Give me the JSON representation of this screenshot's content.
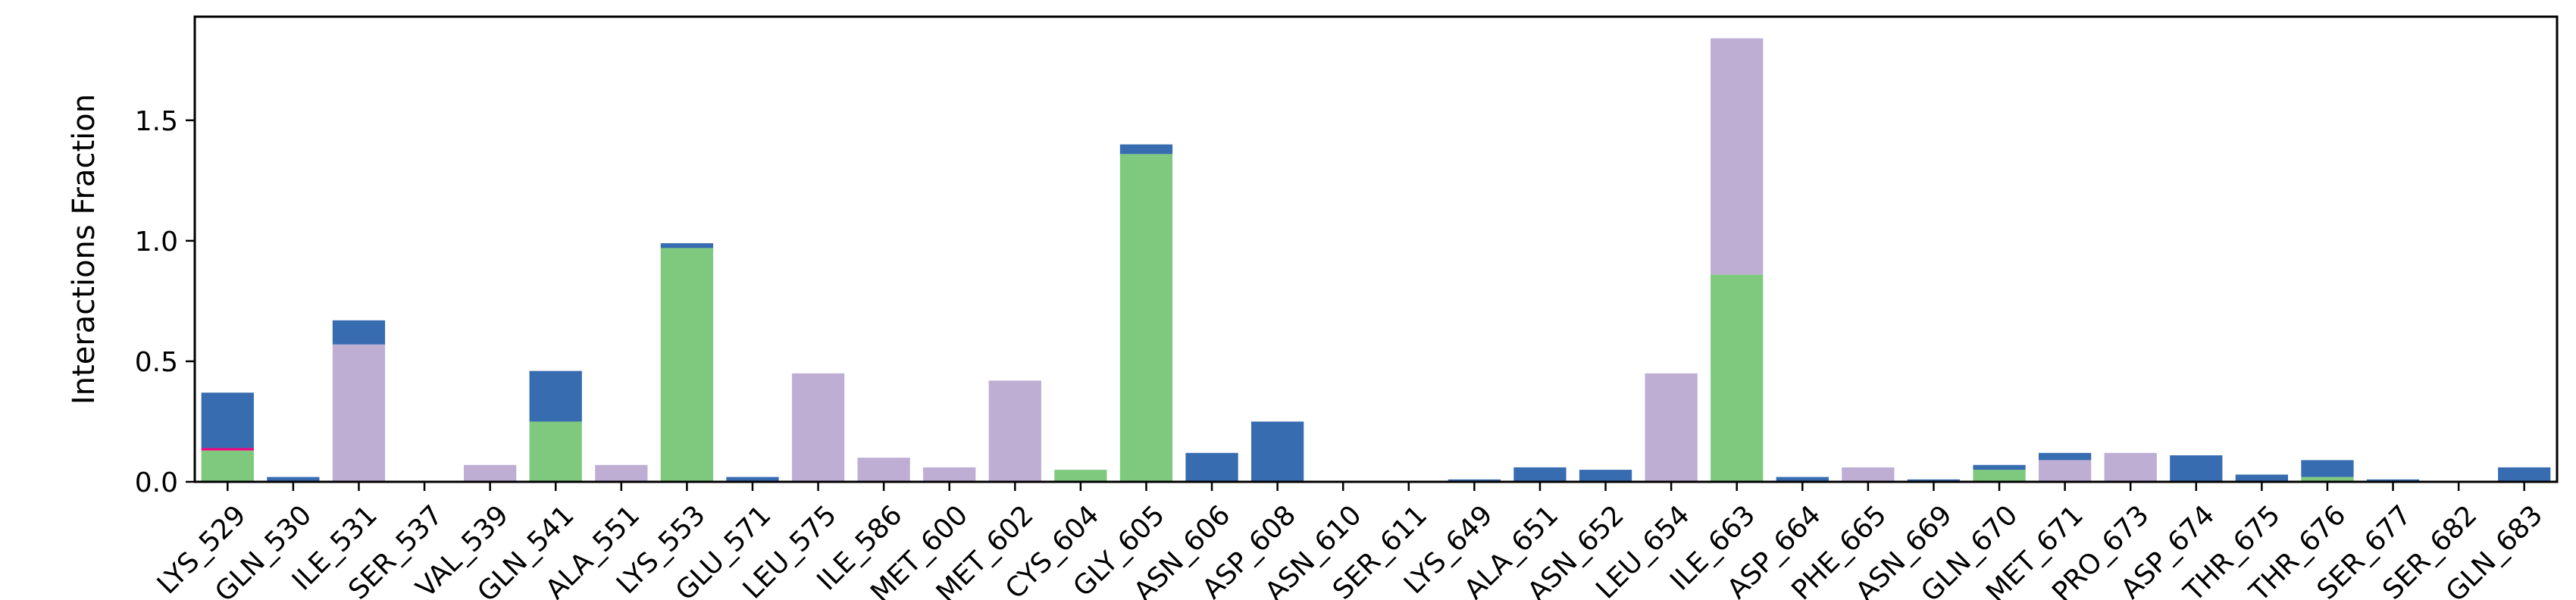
{
  "chart_data": {
    "type": "bar",
    "stacked": true,
    "title": "",
    "xlabel": "",
    "ylabel": "Interactions Fraction",
    "ylim": [
      0,
      1.93
    ],
    "yticks": [
      "0.0",
      "0.5",
      "1.0",
      "1.5"
    ],
    "ytick_values": [
      0,
      0.5,
      1.0,
      1.5
    ],
    "grid": false,
    "categories": [
      "LYS_529",
      "GLN_530",
      "ILE_531",
      "SER_537",
      "VAL_539",
      "GLN_541",
      "ALA_551",
      "LYS_553",
      "GLU_571",
      "LEU_575",
      "ILE_586",
      "MET_600",
      "MET_602",
      "CYS_604",
      "GLY_605",
      "ASN_606",
      "ASP_608",
      "ASN_610",
      "SER_611",
      "LYS_649",
      "ALA_651",
      "ASN_652",
      "LEU_654",
      "ILE_663",
      "ASP_664",
      "PHE_665",
      "ASN_669",
      "GLN_670",
      "MET_671",
      "PRO_673",
      "ASP_674",
      "THR_675",
      "THR_676",
      "SER_677",
      "SER_682",
      "GLN_683"
    ],
    "series": [
      {
        "color": "#7fc97f",
        "values": [
          0.13,
          0,
          0,
          0,
          0,
          0.25,
          0,
          0.97,
          0,
          0,
          0,
          0,
          0,
          0.05,
          1.36,
          0,
          0,
          0,
          0,
          0,
          0,
          0,
          0,
          0.86,
          0,
          0,
          0,
          0.05,
          0,
          0,
          0,
          0,
          0.02,
          0,
          0,
          0
        ]
      },
      {
        "color": "#f0027f",
        "values": [
          0.01,
          0,
          0,
          0,
          0,
          0,
          0,
          0,
          0,
          0,
          0,
          0,
          0,
          0,
          0,
          0,
          0,
          0,
          0,
          0,
          0,
          0,
          0,
          0,
          0,
          0,
          0,
          0,
          0,
          0,
          0,
          0,
          0,
          0,
          0,
          0
        ]
      },
      {
        "color": "#beaed4",
        "values": [
          0,
          0,
          0.57,
          0,
          0.07,
          0,
          0.07,
          0,
          0,
          0.45,
          0.1,
          0.06,
          0.42,
          0,
          0,
          0,
          0,
          0,
          0,
          0,
          0,
          0,
          0.45,
          0.98,
          0,
          0.06,
          0,
          0,
          0.09,
          0.12,
          0,
          0,
          0,
          0,
          0,
          0
        ]
      },
      {
        "color": "#386cb0",
        "values": [
          0.23,
          0.02,
          0.1,
          0,
          0,
          0.21,
          0,
          0.02,
          0.02,
          0,
          0,
          0,
          0,
          0,
          0.04,
          0.12,
          0.25,
          0,
          0,
          0.01,
          0.06,
          0.05,
          0,
          0,
          0.02,
          0,
          0.01,
          0.02,
          0.03,
          0,
          0.11,
          0.03,
          0.07,
          0.01,
          0,
          0.06
        ]
      }
    ]
  }
}
